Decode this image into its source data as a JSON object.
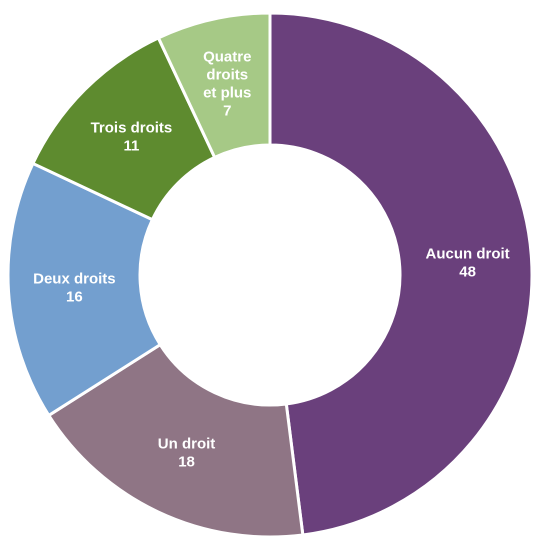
{
  "chart_data": {
    "type": "pie",
    "variant": "donut",
    "title": "",
    "categories": [
      "Aucun droit",
      "Un droit",
      "Deux droits",
      "Trois droits",
      "Quatre droits et plus"
    ],
    "values": [
      48,
      18,
      16,
      11,
      7
    ],
    "colors": [
      "#6a407c",
      "#8f7585",
      "#739fcf",
      "#5e8b2f",
      "#a6c986"
    ],
    "labels": [
      {
        "lines": [
          "Aucun droit"
        ],
        "value": "48"
      },
      {
        "lines": [
          "Un droit"
        ],
        "value": "18"
      },
      {
        "lines": [
          "Deux droits"
        ],
        "value": "16"
      },
      {
        "lines": [
          "Trois droits"
        ],
        "value": "11"
      },
      {
        "lines": [
          "Quatre",
          "droits",
          "et plus"
        ],
        "value": "7"
      }
    ],
    "legend": "none"
  }
}
